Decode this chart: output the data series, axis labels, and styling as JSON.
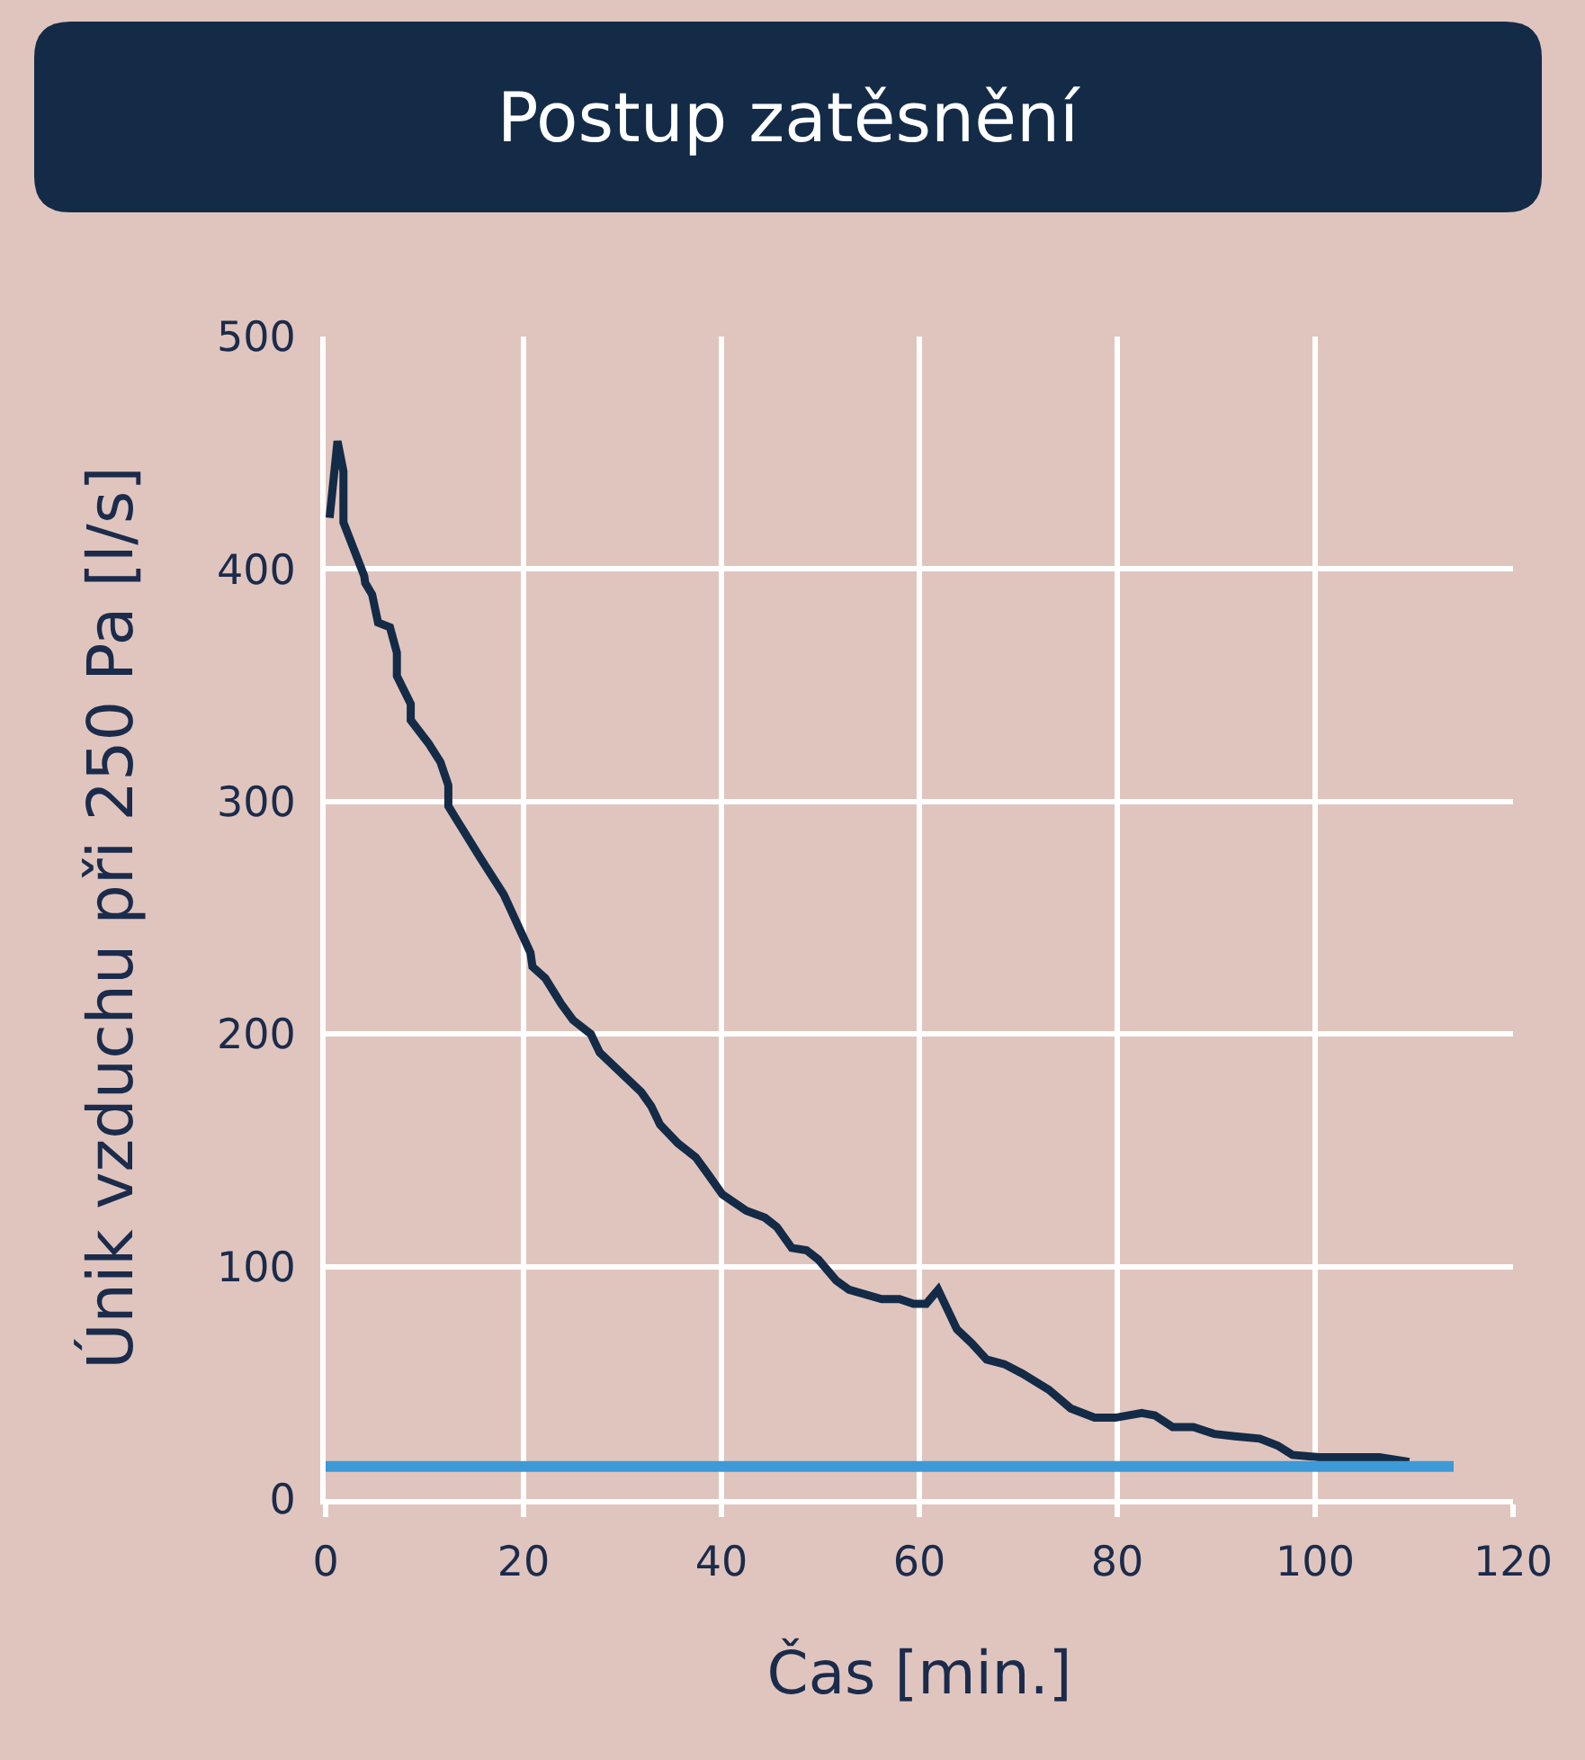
{
  "chart_data": {
    "type": "line",
    "title": "Postup zatěsnění",
    "xlabel": "Čas [min.]",
    "ylabel": "Únik vzduchu při 250 Pa [l/s]",
    "xlim": [
      0,
      120
    ],
    "ylim": [
      0,
      500
    ],
    "xticks": [
      0,
      20,
      40,
      60,
      80,
      100,
      120
    ],
    "yticks": [
      0,
      100,
      200,
      300,
      400,
      500
    ],
    "grid": true,
    "series": [
      {
        "color": "#132b47",
        "x": [
          0.4,
          1.2,
          1.8,
          1.8,
          3.9,
          4.0,
          4.7,
          5.3,
          6.5,
          7.2,
          7.2,
          8.6,
          8.6,
          10.4,
          11.6,
          12.4,
          12.4,
          15.6,
          18.0,
          20.7,
          20.9,
          22.2,
          23.8,
          25.0,
          26.8,
          27.7,
          31.9,
          32.9,
          33.8,
          35.6,
          37.4,
          38.6,
          40.1,
          42.5,
          44.4,
          45.6,
          47.1,
          48.6,
          49.8,
          51.6,
          52.9,
          56.2,
          58.0,
          59.4,
          60.7,
          61.9,
          63.8,
          65.3,
          66.8,
          68.6,
          70.4,
          73.1,
          75.3,
          77.7,
          79.8,
          82.5,
          83.8,
          85.6,
          87.7,
          89.8,
          91.9,
          94.4,
          96.2,
          97.7,
          100.4,
          104.0,
          106.5,
          109.5
        ],
        "values": [
          422,
          455,
          442,
          420,
          397,
          394,
          389,
          377,
          375,
          364,
          354,
          342,
          335,
          325,
          317,
          307,
          298,
          276,
          260,
          235,
          229,
          224,
          213,
          206,
          200,
          192,
          175,
          169,
          161,
          153,
          147,
          140,
          131,
          124,
          121,
          117,
          108,
          107,
          103,
          94,
          90,
          86,
          86,
          84,
          84,
          90,
          73,
          67,
          60,
          58,
          54,
          47,
          39,
          35,
          35,
          37,
          36,
          31,
          31,
          28,
          27,
          26,
          23,
          19,
          18,
          18,
          18,
          16
        ]
      },
      {
        "type": "line",
        "color": "#3d9ad6",
        "x": [
          0,
          114
        ],
        "values": [
          14,
          14
        ]
      }
    ]
  }
}
